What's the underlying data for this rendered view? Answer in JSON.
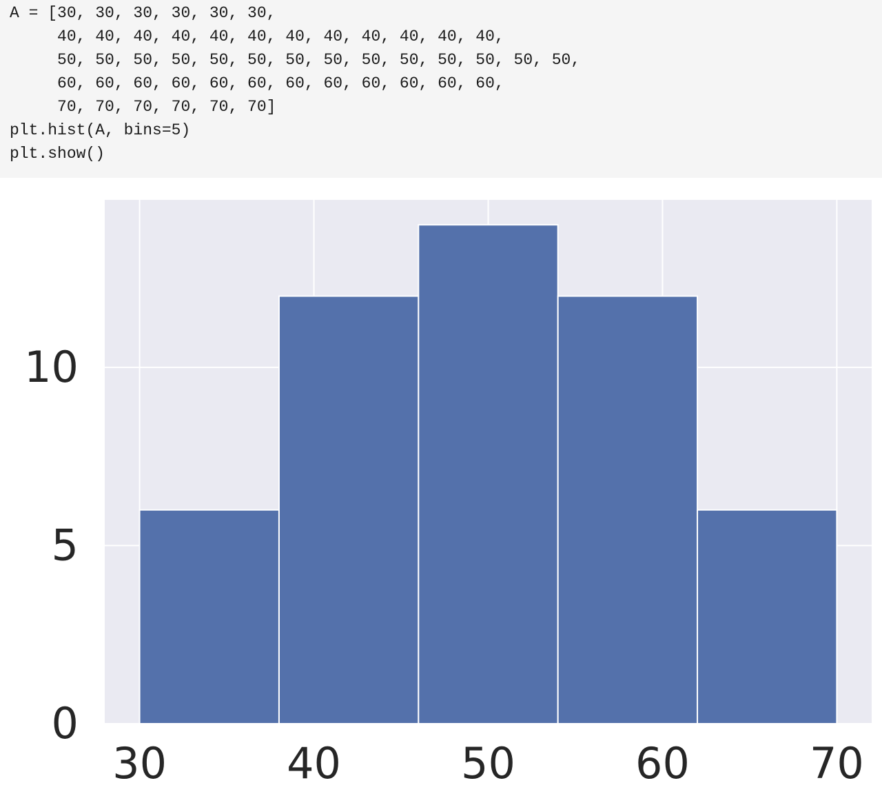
{
  "code": {
    "lines": [
      "A = [30, 30, 30, 30, 30, 30,",
      "     40, 40, 40, 40, 40, 40, 40, 40, 40, 40, 40, 40,",
      "     50, 50, 50, 50, 50, 50, 50, 50, 50, 50, 50, 50, 50, 50,",
      "     60, 60, 60, 60, 60, 60, 60, 60, 60, 60, 60, 60,",
      "     70, 70, 70, 70, 70, 70]",
      "plt.hist(A, bins=5)",
      "plt.show()"
    ]
  },
  "chart_data": {
    "type": "histogram",
    "bins": [
      30,
      38,
      46,
      54,
      62,
      70
    ],
    "values": [
      6,
      12,
      14,
      12,
      6
    ],
    "color": "#5471ab",
    "xlim": [
      28,
      72
    ],
    "ylim": [
      0,
      14.7
    ],
    "xticks": [
      30,
      40,
      50,
      60,
      70
    ],
    "yticks": [
      0,
      5,
      10
    ],
    "grid": true
  }
}
